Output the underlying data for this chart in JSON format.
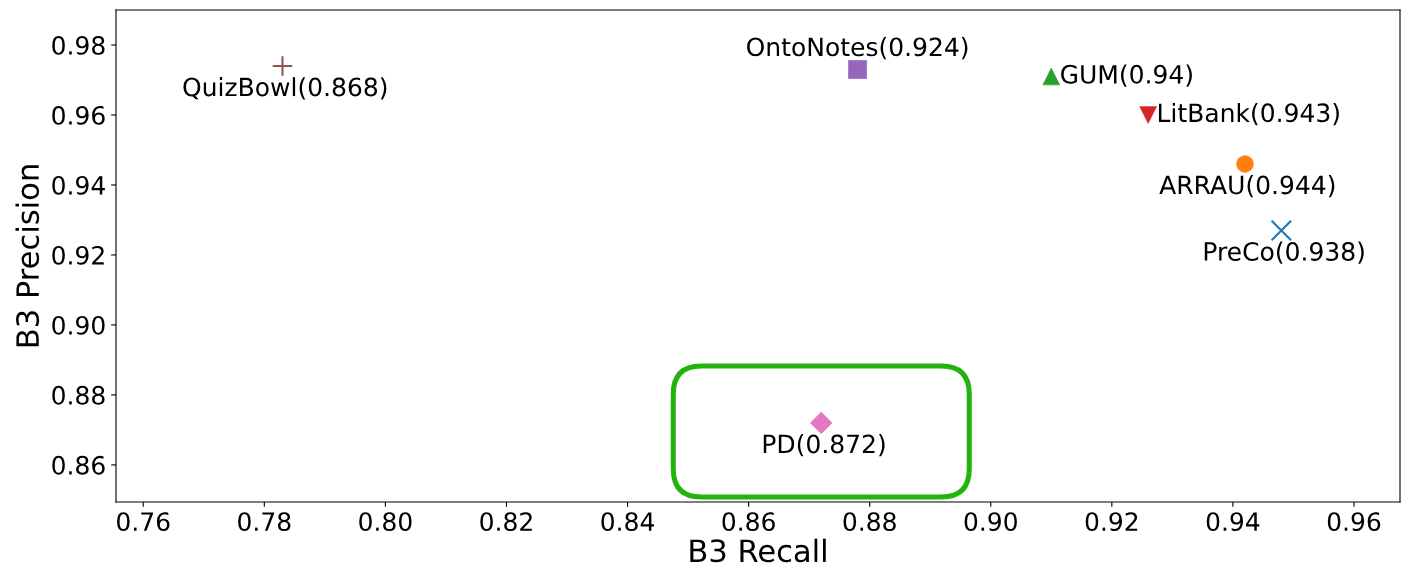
{
  "chart_data": {
    "type": "scatter",
    "xlabel": "B3 Recall",
    "ylabel": "B3 Precision",
    "xlim": [
      0.7555,
      0.9676
    ],
    "ylim": [
      0.8494,
      0.99
    ],
    "xticks": [
      {
        "value": 0.76,
        "label": "0.76"
      },
      {
        "value": 0.78,
        "label": "0.78"
      },
      {
        "value": 0.8,
        "label": "0.80"
      },
      {
        "value": 0.82,
        "label": "0.82"
      },
      {
        "value": 0.84,
        "label": "0.84"
      },
      {
        "value": 0.86,
        "label": "0.86"
      },
      {
        "value": 0.88,
        "label": "0.88"
      },
      {
        "value": 0.9,
        "label": "0.90"
      },
      {
        "value": 0.92,
        "label": "0.92"
      },
      {
        "value": 0.94,
        "label": "0.94"
      },
      {
        "value": 0.96,
        "label": "0.96"
      }
    ],
    "yticks": [
      {
        "value": 0.86,
        "label": "0.86"
      },
      {
        "value": 0.88,
        "label": "0.88"
      },
      {
        "value": 0.9,
        "label": "0.90"
      },
      {
        "value": 0.92,
        "label": "0.92"
      },
      {
        "value": 0.94,
        "label": "0.94"
      },
      {
        "value": 0.96,
        "label": "0.96"
      },
      {
        "value": 0.98,
        "label": "0.98"
      }
    ],
    "grid": false,
    "legend": false,
    "series": [
      {
        "name": "QuizBowl(0.868)",
        "color": "#8c564b",
        "marker": "plus",
        "x": [
          0.783
        ],
        "values": [
          0.974
        ]
      },
      {
        "name": "OntoNotes(0.924)",
        "color": "#9467bd",
        "marker": "square",
        "x": [
          0.878
        ],
        "values": [
          0.973
        ]
      },
      {
        "name": "GUM(0.94)",
        "color": "#2ca02c",
        "marker": "triangle",
        "x": [
          0.91
        ],
        "values": [
          0.971
        ]
      },
      {
        "name": "LitBank(0.943)",
        "color": "#d62728",
        "marker": "triangle_down",
        "x": [
          0.926
        ],
        "values": [
          0.96
        ]
      },
      {
        "name": "ARRAU(0.944)",
        "color": "#ff7f0e",
        "marker": "circle",
        "x": [
          0.942
        ],
        "values": [
          0.946
        ]
      },
      {
        "name": "PreCo(0.938)",
        "color": "#1f77b4",
        "marker": "cross",
        "x": [
          0.948
        ],
        "values": [
          0.927
        ]
      },
      {
        "name": "PD(0.872)",
        "color": "#e377c2",
        "marker": "diamond",
        "x": [
          0.872
        ],
        "values": [
          0.872
        ]
      }
    ]
  }
}
